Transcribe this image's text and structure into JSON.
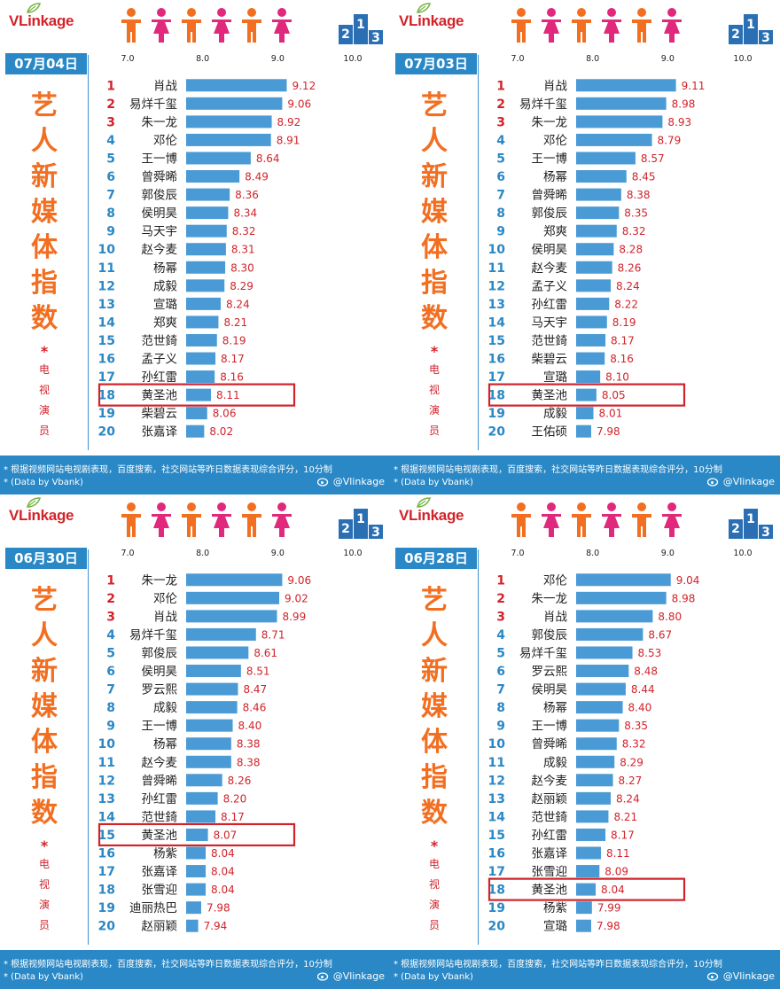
{
  "brand": "VLinkage",
  "footer": {
    "line1": "* 根据视频网站电视剧表现，百度搜索，社交网站等昨日数据表现综合评分，10分制",
    "line2": "* (Data by Vbank)",
    "weibo": "@Vlinkage"
  },
  "side_title": [
    "艺",
    "人",
    "新",
    "媒",
    "体",
    "指",
    "数"
  ],
  "side_subtitle": [
    "*",
    "电",
    "视",
    "演",
    "员"
  ],
  "colors": {
    "bar": "#4a9ad6",
    "rank_red": "#d2232a",
    "rank_blue": "#2a88c6",
    "value": "#d2232a",
    "highlight": "#d2232a",
    "date_bg": "#2a88c6",
    "title": "#f26f21"
  },
  "icons": {
    "figures": "people-figures-icon",
    "podium": "podium-icon",
    "leaf": "leaf-icon",
    "weibo": "weibo-icon"
  },
  "chart_data": [
    {
      "type": "bar",
      "date": "07月04日",
      "xlim": [
        7.0,
        10.0
      ],
      "xticks": [
        "7.0",
        "8.0",
        "9.0",
        "10.0"
      ],
      "highlight_rank": 18,
      "ranks": [
        "1",
        "2",
        "3",
        "4",
        "5",
        "6",
        "7",
        "8",
        "9",
        "10",
        "11",
        "12",
        "13",
        "14",
        "15",
        "16",
        "17",
        "18",
        "19",
        "20"
      ],
      "categories": [
        "肖战",
        "易烊千玺",
        "朱一龙",
        "邓伦",
        "王一博",
        "曾舜晞",
        "郭俊辰",
        "侯明昊",
        "马天宇",
        "赵今麦",
        "杨幂",
        "成毅",
        "宣璐",
        "郑爽",
        "范世錡",
        "孟子义",
        "孙红雷",
        "黄圣池",
        "柴碧云",
        "张嘉译"
      ],
      "values": [
        9.12,
        9.06,
        8.92,
        8.91,
        8.64,
        8.49,
        8.36,
        8.34,
        8.32,
        8.31,
        8.3,
        8.29,
        8.24,
        8.21,
        8.19,
        8.17,
        8.16,
        8.11,
        8.06,
        8.02
      ],
      "value_labels": [
        "9.12",
        "9.06",
        "8.92",
        "8.91",
        "8.64",
        "8.49",
        "8.36",
        "8.34",
        "8.32",
        "8.31",
        "8.30",
        "8.29",
        "8.24",
        "8.21",
        "8.19",
        "8.17",
        "8.16",
        "8.11",
        "8.06",
        "8.02"
      ]
    },
    {
      "type": "bar",
      "date": "07月03日",
      "xlim": [
        7.0,
        10.0
      ],
      "xticks": [
        "7.0",
        "8.0",
        "9.0",
        "10.0"
      ],
      "highlight_rank": 18,
      "ranks": [
        "1",
        "2",
        "3",
        "4",
        "5",
        "6",
        "7",
        "8",
        "9",
        "10",
        "11",
        "12",
        "13",
        "14",
        "15",
        "16",
        "17",
        "18",
        "19",
        "20"
      ],
      "categories": [
        "肖战",
        "易烊千玺",
        "朱一龙",
        "邓伦",
        "王一博",
        "杨幂",
        "曾舜晞",
        "郭俊辰",
        "郑爽",
        "侯明昊",
        "赵今麦",
        "孟子义",
        "孙红雷",
        "马天宇",
        "范世錡",
        "柴碧云",
        "宣璐",
        "黄圣池",
        "成毅",
        "王佑硕"
      ],
      "values": [
        9.11,
        8.98,
        8.93,
        8.79,
        8.57,
        8.45,
        8.38,
        8.35,
        8.32,
        8.28,
        8.26,
        8.24,
        8.22,
        8.19,
        8.17,
        8.16,
        8.1,
        8.05,
        8.01,
        7.98
      ],
      "value_labels": [
        "9.11",
        "8.98",
        "8.93",
        "8.79",
        "8.57",
        "8.45",
        "8.38",
        "8.35",
        "8.32",
        "8.28",
        "8.26",
        "8.24",
        "8.22",
        "8.19",
        "8.17",
        "8.16",
        "8.10",
        "8.05",
        "8.01",
        "7.98"
      ]
    },
    {
      "type": "bar",
      "date": "06月30日",
      "xlim": [
        7.0,
        10.0
      ],
      "xticks": [
        "7.0",
        "8.0",
        "9.0",
        "10.0"
      ],
      "highlight_rank": 15,
      "ranks": [
        "1",
        "2",
        "3",
        "4",
        "5",
        "6",
        "7",
        "8",
        "9",
        "10",
        "11",
        "12",
        "13",
        "14",
        "15",
        "16",
        "17",
        "18",
        "19",
        "20"
      ],
      "categories": [
        "朱一龙",
        "邓伦",
        "肖战",
        "易烊千玺",
        "郭俊辰",
        "侯明昊",
        "罗云熙",
        "成毅",
        "王一博",
        "杨幂",
        "赵今麦",
        "曾舜晞",
        "孙红雷",
        "范世錡",
        "黄圣池",
        "杨紫",
        "张嘉译",
        "张雪迎",
        "迪丽热巴",
        "赵丽颖"
      ],
      "values": [
        9.06,
        9.02,
        8.99,
        8.71,
        8.61,
        8.51,
        8.47,
        8.46,
        8.4,
        8.38,
        8.38,
        8.26,
        8.2,
        8.17,
        8.07,
        8.04,
        8.04,
        8.04,
        7.98,
        7.94
      ],
      "value_labels": [
        "9.06",
        "9.02",
        "8.99",
        "8.71",
        "8.61",
        "8.51",
        "8.47",
        "8.46",
        "8.40",
        "8.38",
        "8.38",
        "8.26",
        "8.20",
        "8.17",
        "8.07",
        "8.04",
        "8.04",
        "8.04",
        "7.98",
        "7.94"
      ]
    },
    {
      "type": "bar",
      "date": "06月28日",
      "xlim": [
        7.0,
        10.0
      ],
      "xticks": [
        "7.0",
        "8.0",
        "9.0",
        "10.0"
      ],
      "highlight_rank": 18,
      "ranks": [
        "1",
        "2",
        "3",
        "4",
        "5",
        "6",
        "7",
        "8",
        "9",
        "10",
        "11",
        "12",
        "13",
        "14",
        "15",
        "16",
        "17",
        "18",
        "19",
        "20"
      ],
      "categories": [
        "邓伦",
        "朱一龙",
        "肖战",
        "郭俊辰",
        "易烊千玺",
        "罗云熙",
        "侯明昊",
        "杨幂",
        "王一博",
        "曾舜晞",
        "成毅",
        "赵今麦",
        "赵丽颖",
        "范世錡",
        "孙红雷",
        "张嘉译",
        "张雪迎",
        "黄圣池",
        "杨紫",
        "宣璐"
      ],
      "values": [
        9.04,
        8.98,
        8.8,
        8.67,
        8.53,
        8.48,
        8.44,
        8.4,
        8.35,
        8.32,
        8.29,
        8.27,
        8.24,
        8.21,
        8.17,
        8.11,
        8.09,
        8.04,
        7.99,
        7.98
      ],
      "value_labels": [
        "9.04",
        "8.98",
        "8.80",
        "8.67",
        "8.53",
        "8.48",
        "8.44",
        "8.40",
        "8.35",
        "8.32",
        "8.29",
        "8.27",
        "8.24",
        "8.21",
        "8.17",
        "8.11",
        "8.09",
        "8.04",
        "7.99",
        "7.98"
      ]
    }
  ]
}
